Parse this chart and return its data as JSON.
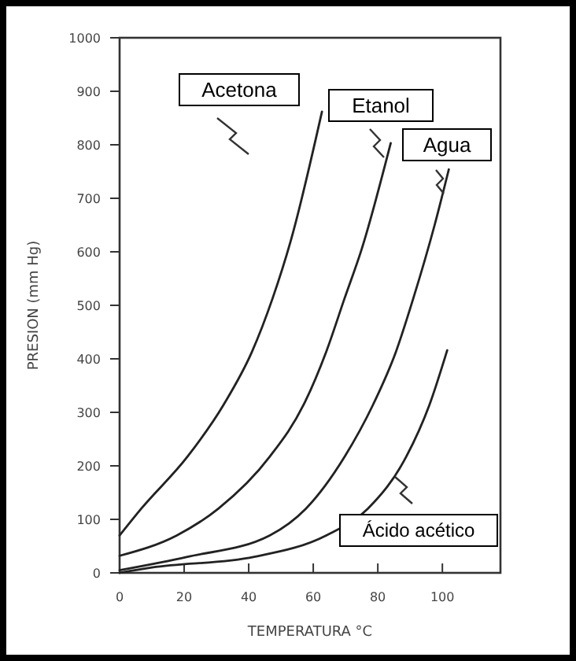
{
  "chart_data": {
    "type": "line",
    "xlabel": "TEMPERATURA °C",
    "ylabel": "PRESION (mm Hg)",
    "xlim": [
      0,
      118
    ],
    "ylim": [
      0,
      1000
    ],
    "xticks": [
      0,
      20,
      40,
      60,
      80,
      100
    ],
    "yticks": [
      0,
      100,
      200,
      300,
      400,
      500,
      600,
      700,
      800,
      900,
      1000
    ],
    "grid": false,
    "marker": "none",
    "line_style": "solid",
    "series": [
      {
        "name": "Acetona",
        "color": "#222222",
        "x": [
          0,
          6.7,
          21,
          32.2,
          41,
          47.4,
          53,
          62.7
        ],
        "values": [
          70,
          120,
          217,
          314,
          413,
          513,
          620,
          862
        ]
      },
      {
        "name": "Etanol",
        "color": "#222222",
        "x": [
          0,
          17.7,
          30.6,
          46.5,
          57,
          64,
          69.7,
          75,
          84
        ],
        "values": [
          32,
          70,
          120,
          217,
          314,
          413,
          513,
          605,
          803
        ]
      },
      {
        "name": "Agua",
        "color": "#222222",
        "x": [
          0,
          21,
          46.5,
          57.7,
          69.7,
          78.5,
          85.6,
          91,
          97.6,
          102
        ],
        "values": [
          5,
          30,
          70,
          120,
          217,
          314,
          413,
          513,
          650,
          754
        ]
      },
      {
        "name": "Ácido acético",
        "color": "#222222",
        "x": [
          0,
          10,
          41.7,
          64,
          76.9,
          88.8,
          96,
          101.5
        ],
        "values": [
          0,
          10,
          30,
          70,
          120,
          217,
          314,
          416
        ]
      }
    ]
  }
}
